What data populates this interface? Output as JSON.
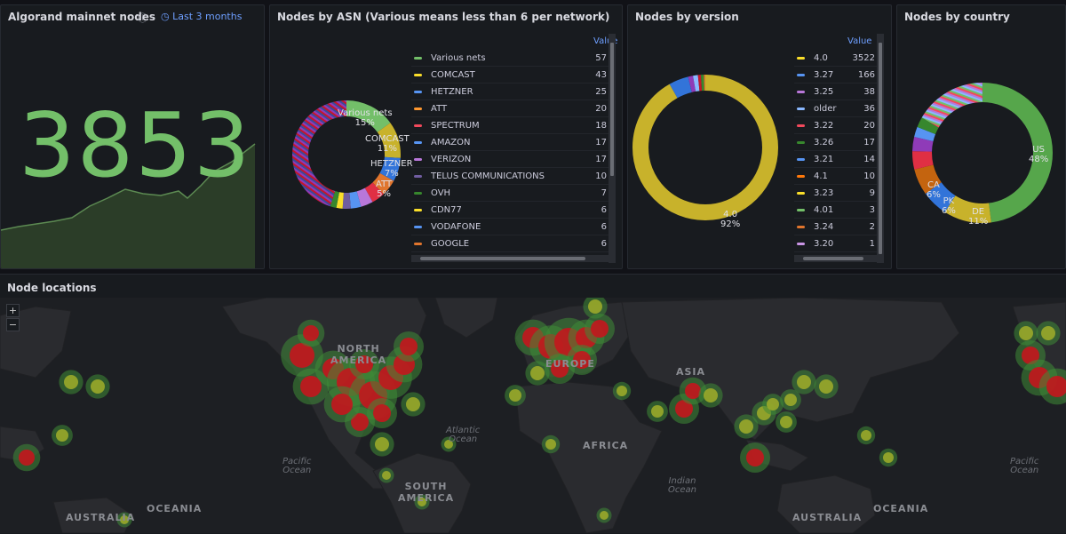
{
  "panels": {
    "nodes": {
      "title": "Algorand mainnet nodes",
      "time_range": "Last 3 months",
      "value": "3853",
      "color": "#73bf69"
    },
    "asn": {
      "title": "Nodes by ASN (Various means less than 6 per network)",
      "legend_header": "Value",
      "items": [
        {
          "label": "Various nets",
          "value": "57",
          "color": "#73bf69"
        },
        {
          "label": "COMCAST",
          "value": "43",
          "color": "#fade2a"
        },
        {
          "label": "HETZNER",
          "value": "25",
          "color": "#5794f2"
        },
        {
          "label": "ATT",
          "value": "20",
          "color": "#ff9830"
        },
        {
          "label": "SPECTRUM",
          "value": "18",
          "color": "#f2495c"
        },
        {
          "label": "AMAZON",
          "value": "17",
          "color": "#5794f2"
        },
        {
          "label": "VERIZON",
          "value": "17",
          "color": "#b877d9"
        },
        {
          "label": "TELUS COMMUNICATIONS",
          "value": "10",
          "color": "#705da0"
        },
        {
          "label": "OVH",
          "value": "7",
          "color": "#37872d"
        },
        {
          "label": "CDN77",
          "value": "6",
          "color": "#fade2a"
        },
        {
          "label": "VODAFONE",
          "value": "6",
          "color": "#5794f2"
        },
        {
          "label": "GOOGLE",
          "value": "6",
          "color": "#e0752d"
        }
      ],
      "pie_labels": [
        {
          "name": "Various nets",
          "pct": "15%"
        },
        {
          "name": "COMCAST",
          "pct": "11%"
        },
        {
          "name": "HETZNER",
          "pct": "7%"
        },
        {
          "name": "ATT",
          "pct": "5%"
        }
      ]
    },
    "version": {
      "title": "Nodes by version",
      "legend_header": "Value",
      "items": [
        {
          "label": "4.0",
          "value": "3522",
          "color": "#fade2a"
        },
        {
          "label": "3.27",
          "value": "166",
          "color": "#5794f2"
        },
        {
          "label": "3.25",
          "value": "38",
          "color": "#b877d9"
        },
        {
          "label": "older",
          "value": "36",
          "color": "#8ab8ff"
        },
        {
          "label": "3.22",
          "value": "20",
          "color": "#f2495c"
        },
        {
          "label": "3.26",
          "value": "17",
          "color": "#37872d"
        },
        {
          "label": "3.21",
          "value": "14",
          "color": "#5794f2"
        },
        {
          "label": "4.1",
          "value": "10",
          "color": "#ff780a"
        },
        {
          "label": "3.23",
          "value": "9",
          "color": "#fade2a"
        },
        {
          "label": "4.01",
          "value": "3",
          "color": "#73bf69"
        },
        {
          "label": "3.24",
          "value": "2",
          "color": "#e0752d"
        },
        {
          "label": "3.20",
          "value": "1",
          "color": "#ca95e5"
        }
      ],
      "pie_labels": [
        {
          "name": "4.0",
          "pct": "92%"
        }
      ]
    },
    "country": {
      "title": "Nodes by country",
      "pie_labels": [
        {
          "name": "US",
          "pct": "48%"
        },
        {
          "name": "DE",
          "pct": "11%"
        },
        {
          "name": "PK",
          "pct": "6%"
        },
        {
          "name": "CA",
          "pct": "6%"
        }
      ]
    },
    "map": {
      "title": "Node locations",
      "zoom_in": "+",
      "zoom_out": "−",
      "labels": {
        "north_america": "NORTH\nAMERICA",
        "europe": "EUROPE",
        "asia": "ASIA",
        "africa": "AFRICA",
        "south_america": "SOUTH\nAMERICA",
        "australia": "AUSTRALIA",
        "oceania": "OCEANIA",
        "australia2": "AUSTRALIA",
        "oceania2": "OCEANIA",
        "atlantic": "Atlantic\nOcean",
        "pacific": "Pacific\nOcean",
        "indian": "Indian\nOcean",
        "pacific2": "Pacific\nOcean"
      }
    }
  }
}
